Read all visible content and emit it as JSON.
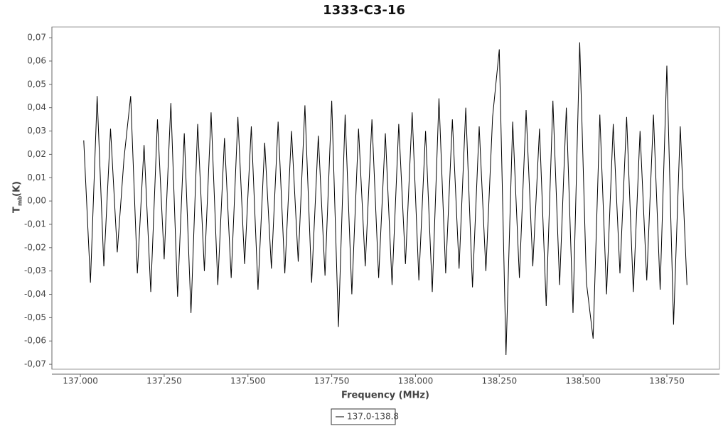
{
  "chart_data": {
    "type": "line",
    "title": "1333-C3-16",
    "xlabel": "Frequency (MHz)",
    "ylabel": {
      "main": "T",
      "sub": "mb",
      "unit": "(K)"
    },
    "xlim": [
      136.915,
      138.907
    ],
    "ylim": [
      -0.0721,
      0.0746
    ],
    "xticks": [
      {
        "value": 137,
        "label": "137.000"
      },
      {
        "value": 137.25,
        "label": "137.250"
      },
      {
        "value": 137.5,
        "label": "137.500"
      },
      {
        "value": 137.75,
        "label": "137.750"
      },
      {
        "value": 138,
        "label": "138.000"
      },
      {
        "value": 138.25,
        "label": "138.250"
      },
      {
        "value": 138.5,
        "label": "138.500"
      },
      {
        "value": 138.75,
        "label": "138.750"
      }
    ],
    "yticks": [
      {
        "value": -0.07,
        "label": "-0,07"
      },
      {
        "value": -0.06,
        "label": "-0,06"
      },
      {
        "value": -0.05,
        "label": "-0,05"
      },
      {
        "value": -0.04,
        "label": "-0,04"
      },
      {
        "value": -0.03,
        "label": "-0,03"
      },
      {
        "value": -0.02,
        "label": "-0,02"
      },
      {
        "value": -0.01,
        "label": "-0,01"
      },
      {
        "value": 0,
        "label": "0,00"
      },
      {
        "value": 0.01,
        "label": "0,01"
      },
      {
        "value": 0.02,
        "label": "0,02"
      },
      {
        "value": 0.03,
        "label": "0,03"
      },
      {
        "value": 0.04,
        "label": "0,04"
      },
      {
        "value": 0.05,
        "label": "0,05"
      },
      {
        "value": 0.06,
        "label": "0,06"
      },
      {
        "value": 0.07,
        "label": "0,07"
      }
    ],
    "grid": false,
    "legend": "bottom",
    "x": [
      137.01,
      137.03,
      137.05,
      137.07,
      137.09,
      137.11,
      137.13,
      137.15,
      137.17,
      137.19,
      137.21,
      137.23,
      137.25,
      137.27,
      137.29,
      137.31,
      137.33,
      137.35,
      137.37,
      137.39,
      137.41,
      137.43,
      137.45,
      137.47,
      137.49,
      137.51,
      137.53,
      137.55,
      137.57,
      137.59,
      137.61,
      137.63,
      137.65,
      137.67,
      137.69,
      137.71,
      137.73,
      137.75,
      137.77,
      137.79,
      137.81,
      137.83,
      137.85,
      137.87,
      137.89,
      137.91,
      137.93,
      137.95,
      137.97,
      137.99,
      138.01,
      138.03,
      138.05,
      138.07,
      138.09,
      138.11,
      138.13,
      138.15,
      138.17,
      138.19,
      138.21,
      138.23,
      138.25,
      138.27,
      138.29,
      138.31,
      138.33,
      138.35,
      138.37,
      138.39,
      138.41,
      138.43,
      138.45,
      138.47,
      138.49,
      138.51,
      138.53,
      138.55,
      138.57,
      138.59,
      138.61,
      138.63,
      138.65,
      138.67,
      138.69,
      138.71,
      138.73,
      138.75,
      138.77,
      138.79,
      138.81
    ],
    "series": [
      {
        "name": "137.0-138.8",
        "color": "#000000",
        "values": [
          0.026,
          -0.035,
          0.045,
          -0.028,
          0.031,
          -0.022,
          0.018,
          0.045,
          -0.031,
          0.024,
          -0.039,
          0.035,
          -0.025,
          0.042,
          -0.041,
          0.029,
          -0.048,
          0.033,
          -0.03,
          0.038,
          -0.036,
          0.027,
          -0.033,
          0.036,
          -0.027,
          0.032,
          -0.038,
          0.025,
          -0.029,
          0.034,
          -0.031,
          0.03,
          -0.026,
          0.041,
          -0.035,
          0.028,
          -0.032,
          0.043,
          -0.054,
          0.037,
          -0.04,
          0.031,
          -0.028,
          0.035,
          -0.033,
          0.029,
          -0.036,
          0.033,
          -0.027,
          0.038,
          -0.034,
          0.03,
          -0.039,
          0.044,
          -0.031,
          0.035,
          -0.029,
          0.04,
          -0.037,
          0.032,
          -0.03,
          0.036,
          0.065,
          -0.066,
          0.034,
          -0.033,
          0.039,
          -0.028,
          0.031,
          -0.045,
          0.043,
          -0.036,
          0.04,
          -0.048,
          0.068,
          -0.035,
          -0.059,
          0.037,
          -0.04,
          0.033,
          -0.031,
          0.036,
          -0.039,
          0.03,
          -0.034,
          0.037,
          -0.038,
          0.058,
          -0.053,
          0.032,
          -0.036
        ]
      }
    ]
  }
}
